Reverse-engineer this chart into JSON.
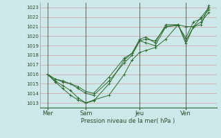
{
  "xlabel": "Pression niveau de la mer( hPa )",
  "background_color": "#cce8e8",
  "grid_color": "#d4a0a0",
  "line_color": "#2d6a2d",
  "ylim": [
    1012.5,
    1023.5
  ],
  "yticks": [
    1013,
    1014,
    1015,
    1016,
    1017,
    1018,
    1019,
    1020,
    1021,
    1022,
    1023
  ],
  "xtick_labels": [
    "Mer",
    "Sam",
    "Jeu",
    "Ven"
  ],
  "xtick_positions": [
    0.5,
    3.0,
    6.5,
    9.5
  ],
  "vline_positions": [
    0.5,
    3.0,
    6.5,
    9.5
  ],
  "xlim": [
    0.0,
    11.5
  ],
  "series": [
    {
      "x": [
        0.5,
        1.0,
        1.5,
        2.0,
        2.5,
        3.0,
        3.5,
        4.5,
        5.5,
        6.0,
        6.5,
        6.9,
        7.5,
        8.2,
        9.0,
        9.5,
        10.0,
        10.5,
        11.0
      ],
      "y": [
        1016.0,
        1015.5,
        1015.3,
        1015.0,
        1014.7,
        1014.2,
        1014.0,
        1015.7,
        1017.7,
        1018.2,
        1019.5,
        1019.7,
        1019.5,
        1021.0,
        1021.2,
        1021.0,
        1021.0,
        1022.0,
        1023.0
      ]
    },
    {
      "x": [
        0.5,
        1.0,
        1.5,
        2.0,
        2.5,
        3.0,
        3.5,
        4.5,
        5.5,
        6.0,
        6.5,
        6.9,
        7.5,
        8.2,
        9.0,
        9.5,
        10.0,
        10.5,
        11.0
      ],
      "y": [
        1016.0,
        1015.3,
        1014.8,
        1014.3,
        1013.5,
        1013.0,
        1013.2,
        1015.0,
        1017.5,
        1018.2,
        1019.7,
        1019.9,
        1019.3,
        1021.2,
        1021.2,
        1019.5,
        1021.0,
        1021.5,
        1022.5
      ]
    },
    {
      "x": [
        0.5,
        1.0,
        1.5,
        2.0,
        2.5,
        3.0,
        3.5,
        4.5,
        5.5,
        6.0,
        6.5,
        6.9,
        7.5,
        8.2,
        9.0,
        9.5,
        10.0,
        10.5,
        11.0
      ],
      "y": [
        1016.0,
        1015.5,
        1015.2,
        1015.0,
        1014.5,
        1014.0,
        1013.8,
        1015.3,
        1017.2,
        1018.0,
        1019.5,
        1019.3,
        1019.0,
        1021.0,
        1021.1,
        1019.8,
        1021.5,
        1021.8,
        1022.8
      ]
    },
    {
      "x": [
        0.5,
        1.0,
        1.5,
        2.0,
        2.5,
        3.0,
        3.5,
        4.5,
        5.5,
        6.0,
        6.5,
        6.9,
        7.5,
        8.2,
        9.0,
        9.5,
        10.0,
        10.5,
        11.0
      ],
      "y": [
        1016.0,
        1015.2,
        1014.5,
        1013.8,
        1013.3,
        1013.0,
        1013.3,
        1013.8,
        1016.0,
        1017.5,
        1018.3,
        1018.5,
        1018.8,
        1019.7,
        1021.2,
        1019.2,
        1021.0,
        1021.2,
        1023.2
      ]
    }
  ]
}
